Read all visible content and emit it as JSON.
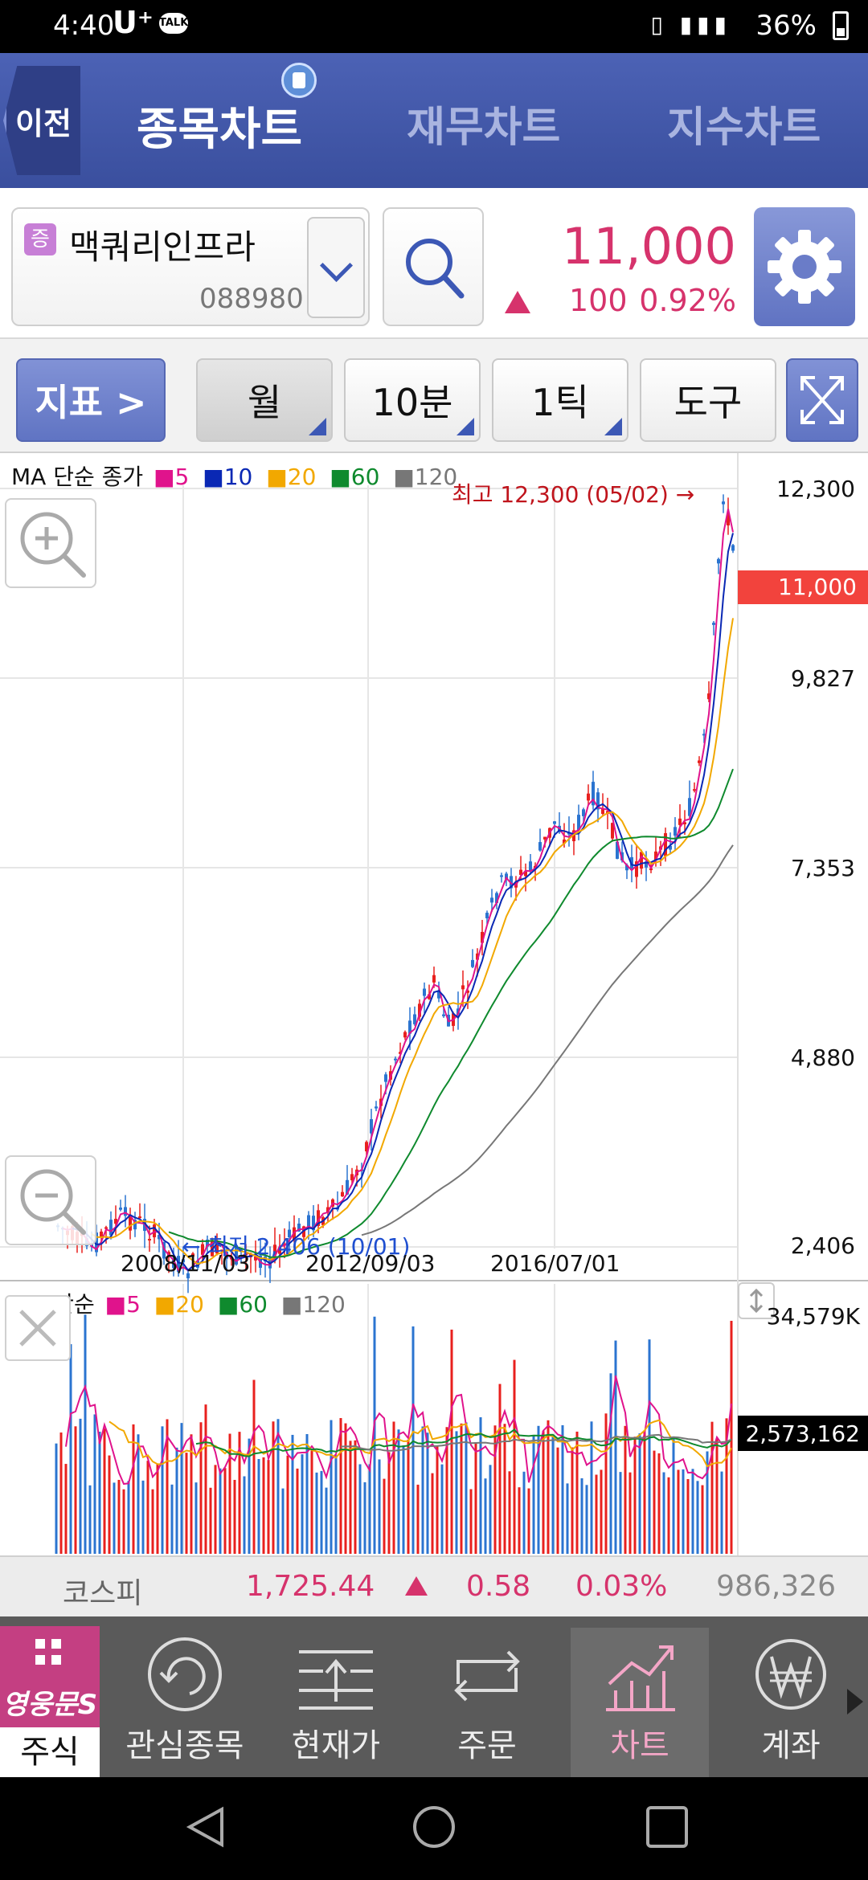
{
  "status_bar": {
    "time": "4:40",
    "carrier": "U⁺",
    "talk": "TALK",
    "battery": "36%"
  },
  "header": {
    "back_label": "이전",
    "tabs": [
      {
        "label": "종목차트",
        "active": true
      },
      {
        "label": "재무차트",
        "active": false
      },
      {
        "label": "지수차트",
        "active": false
      }
    ]
  },
  "stock": {
    "tag": "증",
    "name": "맥쿼리인프라",
    "code": "088980",
    "price": "11,000",
    "change": "100",
    "change_pct": "0.92%"
  },
  "toolbar": {
    "indicator_label": "지표 >",
    "period_label": "월",
    "minute_label": "10분",
    "tick_label": "1틱",
    "tools_label": "도구"
  },
  "price_chart": {
    "legend_title": "MA 단순 종가",
    "ma_labels": [
      "5",
      "10",
      "20",
      "60",
      "120"
    ],
    "high_annotation": "최고 12,300 (05/02) →",
    "low_annotation": "← 최저 2,406 (10/01)",
    "y_ticks": [
      "12,300",
      "9,827",
      "7,353",
      "4,880",
      "2,406"
    ],
    "current_label": "11,000",
    "x_ticks": [
      "2008/11/03",
      "2012/09/03",
      "2016/07/01"
    ]
  },
  "volume_chart": {
    "legend_title": "MA 단순",
    "ma_labels": [
      "5",
      "20",
      "60",
      "120"
    ],
    "max_label": "34,579K",
    "current_label": "2,573,162"
  },
  "index_bar": {
    "name": "코스피",
    "value": "1,725.44",
    "change": "0.58",
    "change_pct": "0.03%",
    "volume": "986,326"
  },
  "bottom_nav": {
    "logo_text": "영웅문S",
    "items": [
      {
        "label": "주식",
        "icon": "grid-icon"
      },
      {
        "label": "관심종목",
        "icon": "refresh-circle-icon"
      },
      {
        "label": "현재가",
        "icon": "price-lines-icon"
      },
      {
        "label": "주문",
        "icon": "exchange-icon"
      },
      {
        "label": "차트",
        "icon": "chart-up-icon",
        "active": true
      },
      {
        "label": "계좌",
        "icon": "won-circle-icon"
      }
    ]
  },
  "colors": {
    "header_blue": "#3a4f9e",
    "up_red": "#d6336c",
    "ma5": "#e0138c",
    "ma10": "#0a28b4",
    "ma20": "#f2a800",
    "ma60": "#0f8a2e",
    "ma120": "#777777",
    "candle_up": "#e8201e",
    "candle_down": "#2b74d0",
    "current_tag": "#f2433d"
  }
}
